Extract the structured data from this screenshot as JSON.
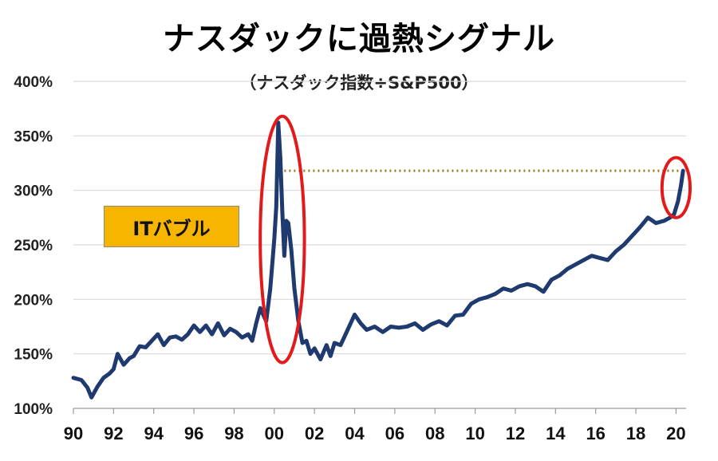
{
  "chart_data": {
    "type": "line",
    "title": "ナスダックに過熱シグナル",
    "subtitle": "（ナスダック指数÷S&P500）",
    "annotation": "ITバブル",
    "xlim": [
      1990,
      2020.5
    ],
    "ylim": [
      100,
      400
    ],
    "y_ticks": [
      100,
      150,
      200,
      250,
      300,
      350,
      400
    ],
    "y_tick_labels": [
      "100%",
      "150%",
      "200%",
      "250%",
      "300%",
      "350%",
      "400%"
    ],
    "x_ticks": [
      1990,
      1992,
      1994,
      1996,
      1998,
      2000,
      2002,
      2004,
      2006,
      2008,
      2010,
      2012,
      2014,
      2016,
      2018,
      2020
    ],
    "x_tick_labels": [
      "90",
      "92",
      "94",
      "96",
      "98",
      "00",
      "02",
      "04",
      "06",
      "08",
      "10",
      "12",
      "14",
      "16",
      "18",
      "20"
    ],
    "grid": true,
    "line_color": "#1f3a6e",
    "highlight_color": "#e31a1c",
    "reference_line": {
      "y": 318,
      "from_x": 2000.5,
      "to_x": 2020.4,
      "color": "#9a7a20"
    },
    "highlight_regions": [
      {
        "x_range": [
          1999.3,
          2001.5
        ],
        "y_range": [
          142,
          368
        ]
      },
      {
        "x_range": [
          2019.3,
          2020.7
        ],
        "y_range": [
          275,
          330
        ]
      }
    ],
    "series": [
      {
        "x": [
          1990.0,
          1990.4,
          1990.7,
          1990.9,
          1991.2,
          1991.5,
          1991.8,
          1992.0,
          1992.2,
          1992.5,
          1992.8,
          1993.0,
          1993.3,
          1993.6,
          1993.9,
          1994.2,
          1994.5,
          1994.8,
          1995.1,
          1995.4,
          1995.7,
          1996.0,
          1996.3,
          1996.6,
          1996.9,
          1997.2,
          1997.5,
          1997.8,
          1998.1,
          1998.4,
          1998.7,
          1998.9,
          1999.1,
          1999.3,
          1999.6,
          1999.8,
          2000.0,
          2000.1,
          2000.2,
          2000.3,
          2000.4,
          2000.5,
          2000.6,
          2000.7,
          2000.85,
          2001.0,
          2001.2,
          2001.4,
          2001.6,
          2001.8,
          2002.0,
          2002.3,
          2002.6,
          2002.8,
          2003.0,
          2003.3,
          2003.6,
          2004.0,
          2004.3,
          2004.6,
          2005.0,
          2005.4,
          2005.8,
          2006.2,
          2006.6,
          2007.0,
          2007.4,
          2007.8,
          2008.2,
          2008.6,
          2009.0,
          2009.4,
          2009.8,
          2010.2,
          2010.6,
          2011.0,
          2011.4,
          2011.8,
          2012.2,
          2012.6,
          2013.0,
          2013.4,
          2013.8,
          2014.2,
          2014.6,
          2015.0,
          2015.4,
          2015.8,
          2016.2,
          2016.6,
          2017.0,
          2017.4,
          2017.8,
          2018.2,
          2018.6,
          2019.0,
          2019.4,
          2019.7,
          2019.9,
          2020.1,
          2020.25,
          2020.35
        ],
        "y": [
          128,
          126,
          119,
          110,
          120,
          128,
          132,
          136,
          150,
          140,
          146,
          148,
          157,
          156,
          162,
          168,
          158,
          165,
          166,
          163,
          168,
          176,
          170,
          176,
          168,
          178,
          167,
          173,
          170,
          165,
          168,
          162,
          178,
          192,
          180,
          210,
          255,
          285,
          362,
          330,
          280,
          240,
          272,
          270,
          245,
          210,
          180,
          160,
          162,
          150,
          155,
          145,
          158,
          148,
          160,
          158,
          170,
          186,
          178,
          172,
          175,
          170,
          175,
          174,
          175,
          178,
          172,
          177,
          180,
          176,
          185,
          186,
          196,
          200,
          202,
          205,
          210,
          208,
          212,
          214,
          212,
          207,
          218,
          222,
          228,
          232,
          236,
          240,
          238,
          236,
          244,
          250,
          258,
          266,
          275,
          270,
          272,
          275,
          278,
          290,
          305,
          318
        ]
      }
    ]
  }
}
